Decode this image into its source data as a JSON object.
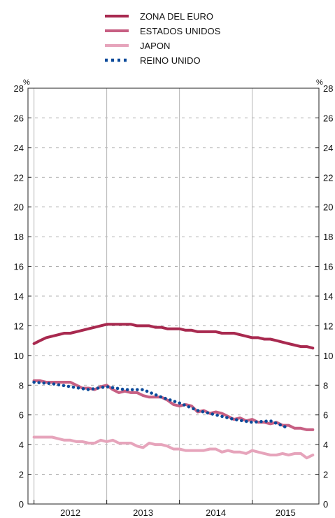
{
  "chart_data": {
    "type": "line",
    "title": "",
    "xlabel": "",
    "ylabel": "%",
    "ylabel_right": "%",
    "ylim": [
      0,
      28
    ],
    "yticks": [
      0,
      2,
      4,
      6,
      8,
      10,
      12,
      14,
      16,
      18,
      20,
      22,
      24,
      26,
      28
    ],
    "xlim": [
      2011.917,
      2015.917
    ],
    "year_labels": [
      "2012",
      "2013",
      "2014",
      "2015"
    ],
    "grid": "horizontal-dashed",
    "legend_position": "top-center",
    "series": [
      {
        "name": "ZONA DEL EURO",
        "color": "#a8294f",
        "style": "solid",
        "x": [
          2012.0,
          2012.083,
          2012.167,
          2012.25,
          2012.333,
          2012.417,
          2012.5,
          2012.583,
          2012.667,
          2012.75,
          2012.833,
          2012.917,
          2013.0,
          2013.083,
          2013.167,
          2013.25,
          2013.333,
          2013.417,
          2013.5,
          2013.583,
          2013.667,
          2013.75,
          2013.833,
          2013.917,
          2014.0,
          2014.083,
          2014.167,
          2014.25,
          2014.333,
          2014.417,
          2014.5,
          2014.583,
          2014.667,
          2014.75,
          2014.833,
          2014.917,
          2015.0,
          2015.083,
          2015.167,
          2015.25,
          2015.333,
          2015.417,
          2015.5,
          2015.583,
          2015.667,
          2015.75,
          2015.833
        ],
        "y": [
          10.8,
          11.0,
          11.2,
          11.3,
          11.4,
          11.5,
          11.5,
          11.6,
          11.7,
          11.8,
          11.9,
          12.0,
          12.1,
          12.1,
          12.1,
          12.1,
          12.1,
          12.0,
          12.0,
          12.0,
          11.9,
          11.9,
          11.8,
          11.8,
          11.8,
          11.7,
          11.7,
          11.6,
          11.6,
          11.6,
          11.6,
          11.5,
          11.5,
          11.5,
          11.4,
          11.3,
          11.2,
          11.2,
          11.1,
          11.1,
          11.0,
          10.9,
          10.8,
          10.7,
          10.6,
          10.6,
          10.5
        ]
      },
      {
        "name": "ESTADOS UNIDOS",
        "color": "#c75f83",
        "style": "solid",
        "x": [
          2012.0,
          2012.083,
          2012.167,
          2012.25,
          2012.333,
          2012.417,
          2012.5,
          2012.583,
          2012.667,
          2012.75,
          2012.833,
          2012.917,
          2013.0,
          2013.083,
          2013.167,
          2013.25,
          2013.333,
          2013.417,
          2013.5,
          2013.583,
          2013.667,
          2013.75,
          2013.833,
          2013.917,
          2014.0,
          2014.083,
          2014.167,
          2014.25,
          2014.333,
          2014.417,
          2014.5,
          2014.583,
          2014.667,
          2014.75,
          2014.833,
          2014.917,
          2015.0,
          2015.083,
          2015.167,
          2015.25,
          2015.333,
          2015.417,
          2015.5,
          2015.583,
          2015.667,
          2015.75,
          2015.833
        ],
        "y": [
          8.3,
          8.3,
          8.2,
          8.2,
          8.2,
          8.2,
          8.2,
          8.0,
          7.8,
          7.8,
          7.7,
          7.9,
          8.0,
          7.7,
          7.5,
          7.6,
          7.5,
          7.5,
          7.3,
          7.2,
          7.2,
          7.2,
          7.0,
          6.7,
          6.6,
          6.7,
          6.6,
          6.2,
          6.3,
          6.1,
          6.2,
          6.1,
          5.9,
          5.7,
          5.8,
          5.6,
          5.7,
          5.5,
          5.5,
          5.4,
          5.5,
          5.3,
          5.3,
          5.1,
          5.1,
          5.0,
          5.0
        ]
      },
      {
        "name": "JAPON",
        "color": "#e6a4bb",
        "style": "solid",
        "x": [
          2012.0,
          2012.083,
          2012.167,
          2012.25,
          2012.333,
          2012.417,
          2012.5,
          2012.583,
          2012.667,
          2012.75,
          2012.833,
          2012.917,
          2013.0,
          2013.083,
          2013.167,
          2013.25,
          2013.333,
          2013.417,
          2013.5,
          2013.583,
          2013.667,
          2013.75,
          2013.833,
          2013.917,
          2014.0,
          2014.083,
          2014.167,
          2014.25,
          2014.333,
          2014.417,
          2014.5,
          2014.583,
          2014.667,
          2014.75,
          2014.833,
          2014.917,
          2015.0,
          2015.083,
          2015.167,
          2015.25,
          2015.333,
          2015.417,
          2015.5,
          2015.583,
          2015.667,
          2015.75,
          2015.833
        ],
        "y": [
          4.5,
          4.5,
          4.5,
          4.5,
          4.4,
          4.3,
          4.3,
          4.2,
          4.2,
          4.1,
          4.1,
          4.3,
          4.2,
          4.3,
          4.1,
          4.1,
          4.1,
          3.9,
          3.8,
          4.1,
          4.0,
          4.0,
          3.9,
          3.7,
          3.7,
          3.6,
          3.6,
          3.6,
          3.6,
          3.7,
          3.7,
          3.5,
          3.6,
          3.5,
          3.5,
          3.4,
          3.6,
          3.5,
          3.4,
          3.3,
          3.3,
          3.4,
          3.3,
          3.4,
          3.4,
          3.1,
          3.3
        ]
      },
      {
        "name": "REINO UNIDO",
        "color": "#0a4a9a",
        "style": "dotted",
        "x": [
          2012.0,
          2012.25,
          2012.5,
          2012.75,
          2013.0,
          2013.25,
          2013.5,
          2013.75,
          2014.0,
          2014.25,
          2014.5,
          2014.75,
          2015.0,
          2015.25,
          2015.5
        ],
        "y": [
          8.2,
          8.1,
          7.9,
          7.7,
          7.9,
          7.7,
          7.7,
          7.2,
          6.8,
          6.3,
          6.0,
          5.7,
          5.5,
          5.6,
          5.1
        ]
      }
    ]
  }
}
